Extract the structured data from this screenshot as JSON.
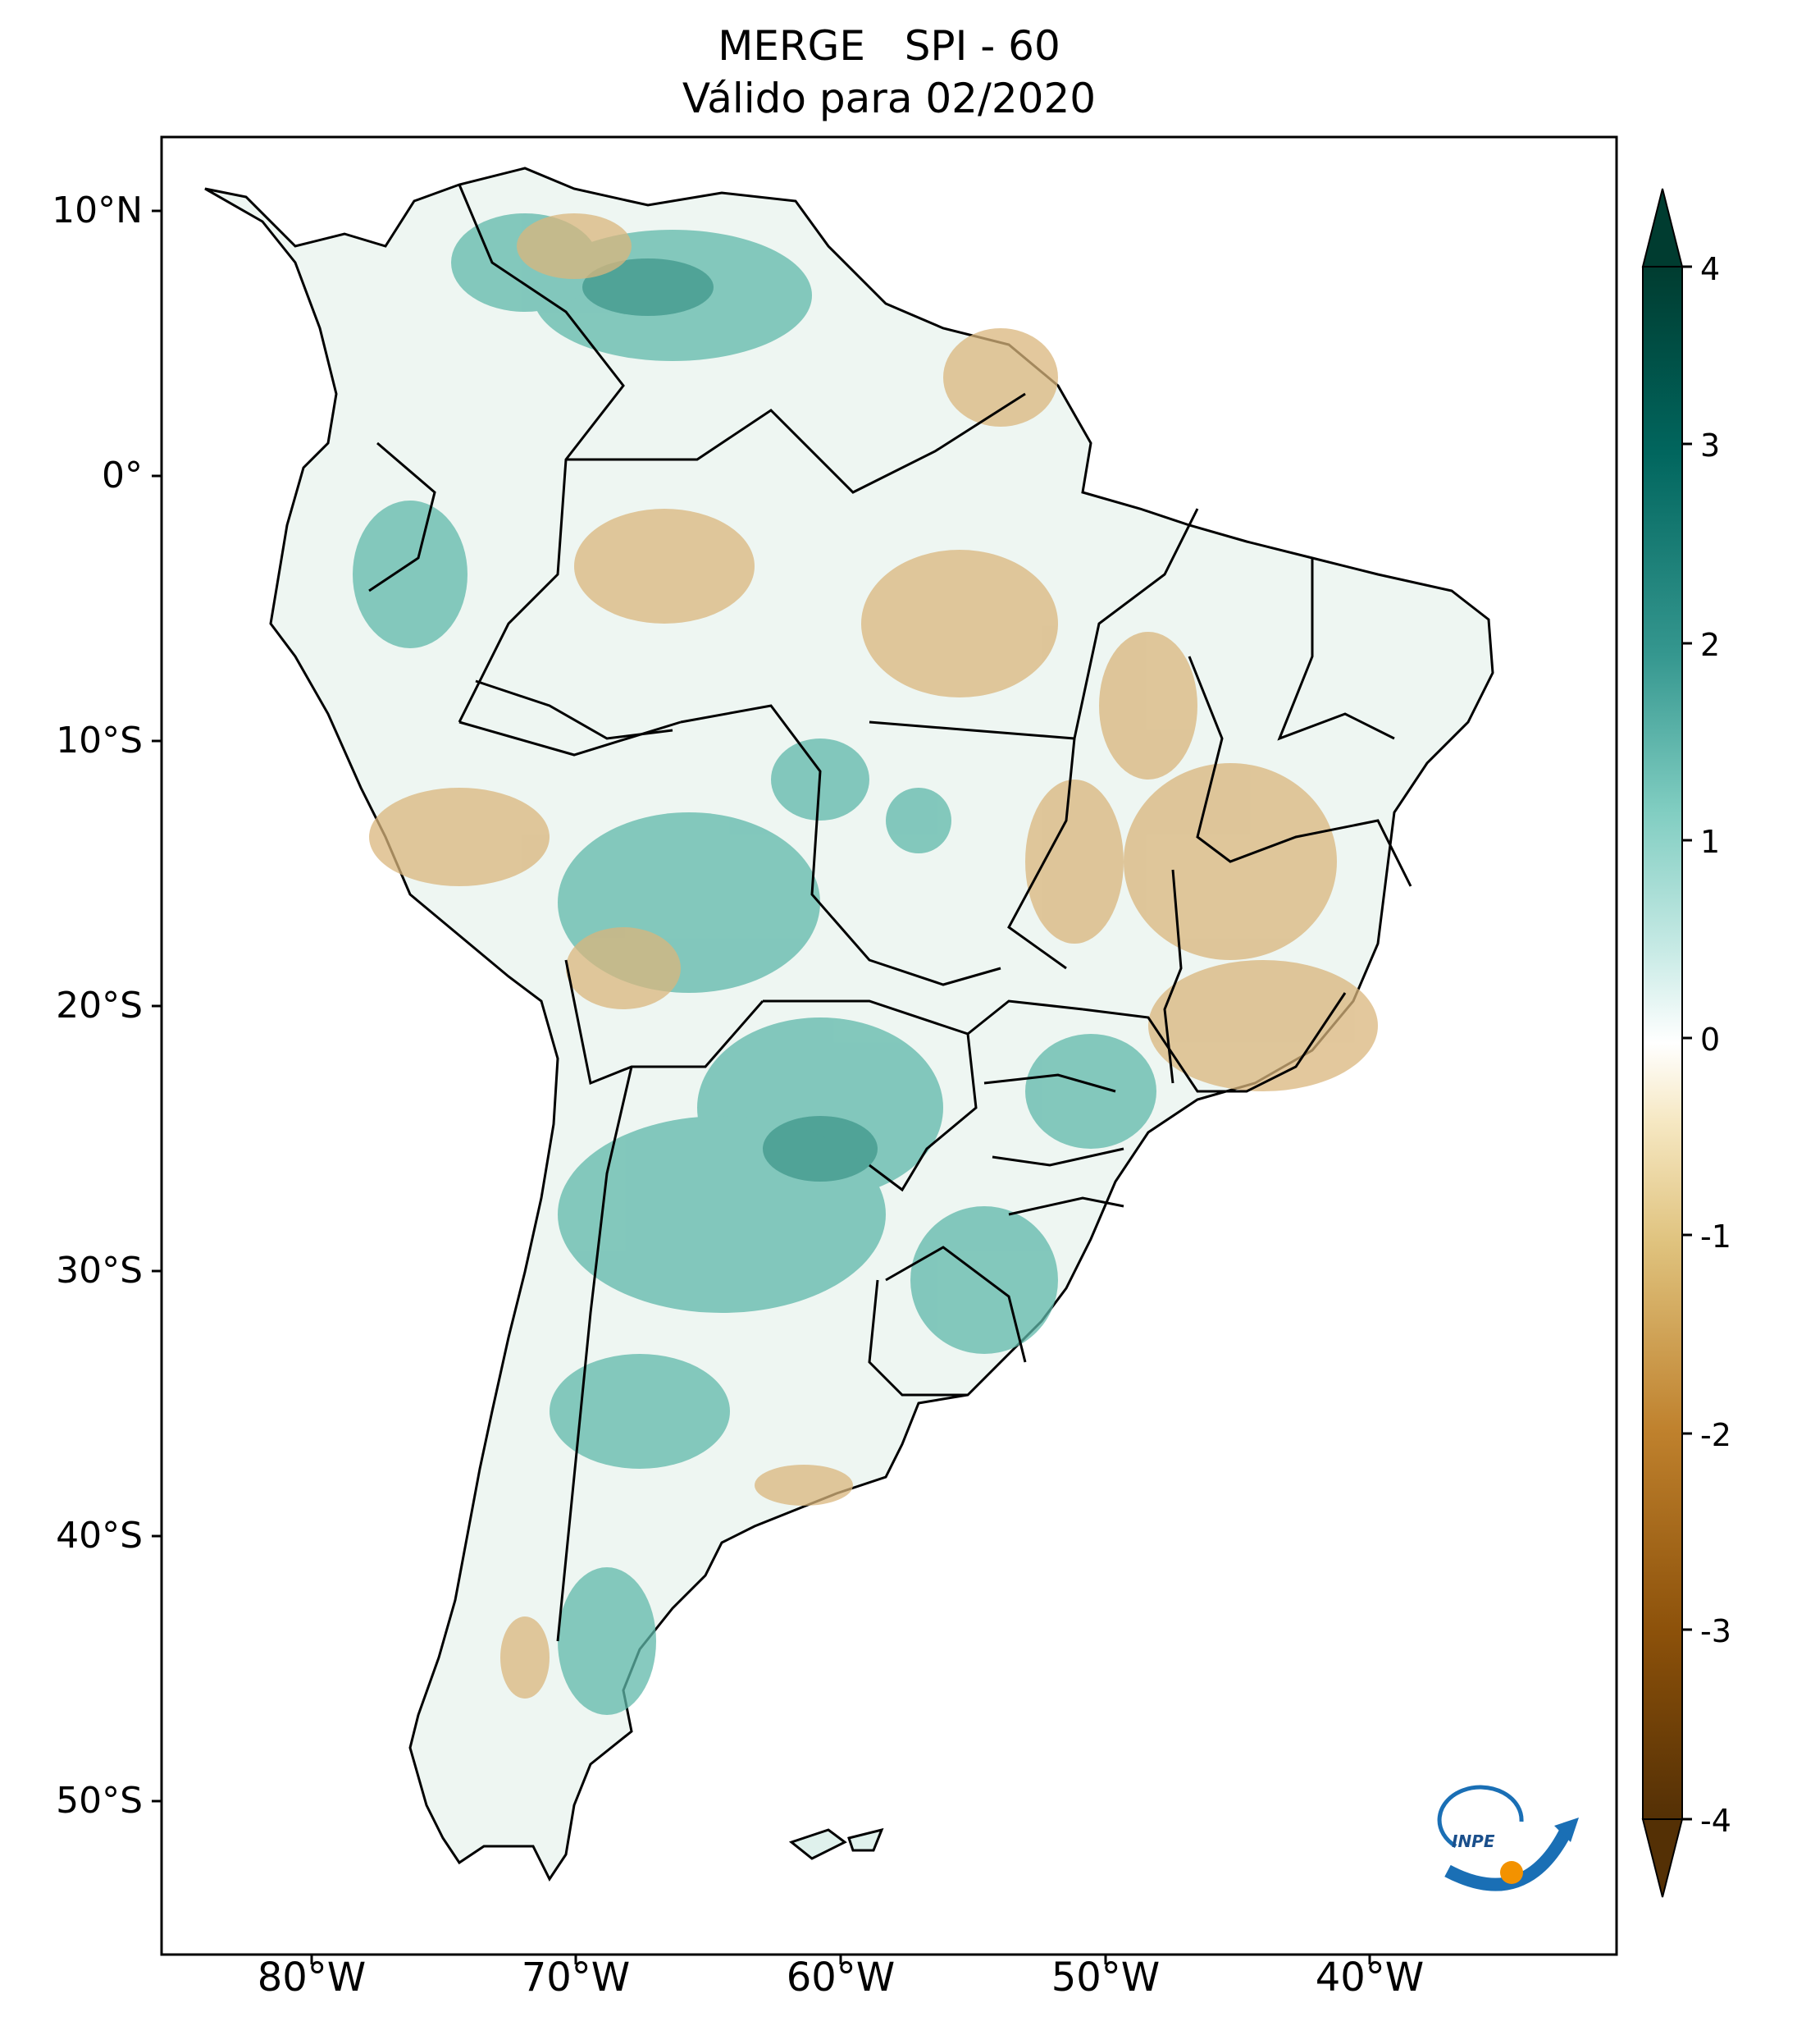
{
  "title": {
    "line1": "MERGE   SPI - 60",
    "line2": "Válido para 02/2020"
  },
  "map": {
    "lat_ticks": [
      "10°N",
      "0°",
      "10°S",
      "20°S",
      "30°S",
      "40°S",
      "50°S"
    ],
    "lon_ticks": [
      "80°W",
      "70°W",
      "60°W",
      "50°W",
      "40°W"
    ],
    "region": "South America",
    "shading_description_colors": {
      "wet": "#3aa79a",
      "dry": "#d7b57a",
      "neutral": "#ffffff"
    }
  },
  "colorbar": {
    "ticks": [
      "4",
      "3",
      "2",
      "1",
      "0",
      "-1",
      "-2",
      "-3",
      "-4"
    ],
    "range": [
      -4,
      4
    ],
    "extend": "both",
    "colors": [
      "#543005",
      "#8c510a",
      "#bf812d",
      "#dfc27d",
      "#f6e8c3",
      "#ffffff",
      "#c7eae5",
      "#80cdc1",
      "#35978f",
      "#01665e",
      "#003c30"
    ]
  },
  "logo": {
    "text": "INPE"
  }
}
